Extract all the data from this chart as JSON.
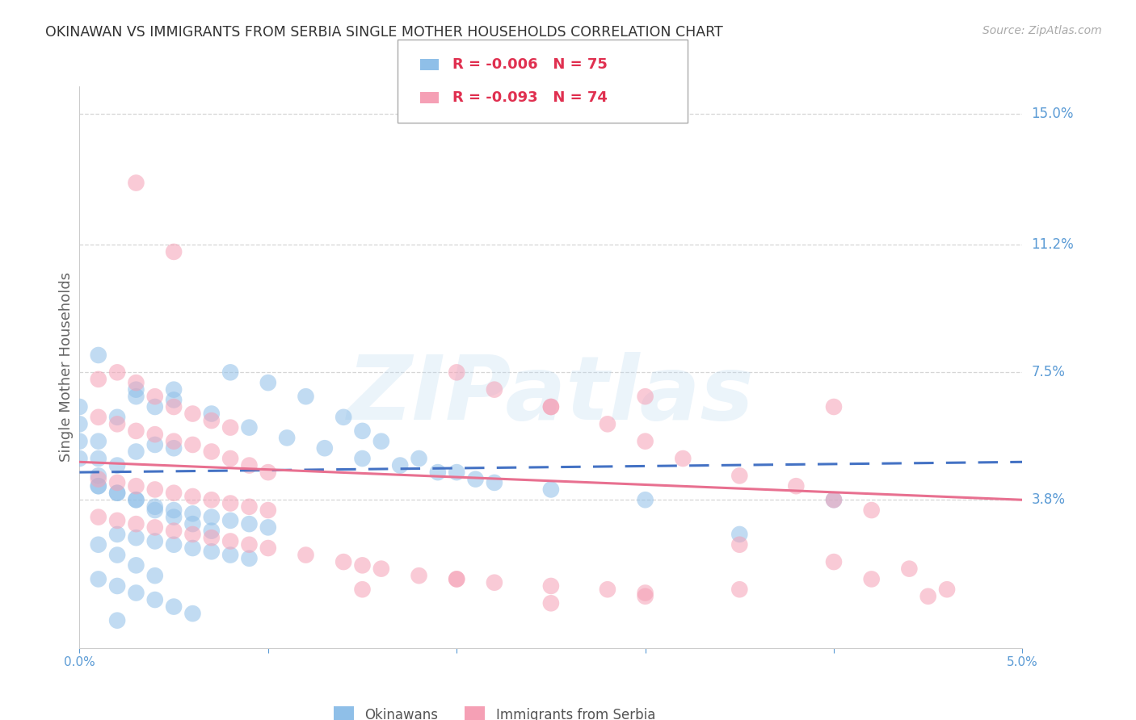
{
  "title": "OKINAWAN VS IMMIGRANTS FROM SERBIA SINGLE MOTHER HOUSEHOLDS CORRELATION CHART",
  "source": "Source: ZipAtlas.com",
  "ylabel": "Single Mother Households",
  "xlim": [
    0.0,
    0.05
  ],
  "ylim": [
    -0.005,
    0.158
  ],
  "ytick_vals": [
    0.038,
    0.075,
    0.112,
    0.15
  ],
  "ytick_labels": [
    "3.8%",
    "7.5%",
    "11.2%",
    "15.0%"
  ],
  "xtick_vals": [
    0.0,
    0.01,
    0.02,
    0.03,
    0.04,
    0.05
  ],
  "xtick_labels": [
    "0.0%",
    "",
    "",
    "",
    "",
    "5.0%"
  ],
  "grid_color": "#cccccc",
  "bg_color": "#ffffff",
  "okinawan_color": "#8fbfe8",
  "serbia_color": "#f5a0b5",
  "okinawan_line_color": "#4472c4",
  "serbia_line_color": "#e87090",
  "okinawan_R": -0.006,
  "okinawan_N": 75,
  "serbia_R": -0.093,
  "serbia_N": 74,
  "legend_label_1": "Okinawans",
  "legend_label_2": "Immigrants from Serbia",
  "watermark": "ZIPatlas",
  "title_color": "#333333",
  "axis_color": "#5b9bd5",
  "blue_line_start": 0.046,
  "blue_line_end": 0.049,
  "pink_line_start": 0.049,
  "pink_line_end": 0.038,
  "okinawan_pts_x": [
    0.001,
    0.002,
    0.003,
    0.004,
    0.005,
    0.001,
    0.002,
    0.003,
    0.004,
    0.005,
    0.001,
    0.002,
    0.003,
    0.004,
    0.005,
    0.006,
    0.007,
    0.008,
    0.009,
    0.01,
    0.002,
    0.003,
    0.004,
    0.005,
    0.006,
    0.007,
    0.008,
    0.009,
    0.0,
    0.0,
    0.0,
    0.0,
    0.001,
    0.001,
    0.002,
    0.003,
    0.004,
    0.005,
    0.006,
    0.007,
    0.001,
    0.002,
    0.003,
    0.004,
    0.001,
    0.002,
    0.003,
    0.004,
    0.005,
    0.006,
    0.008,
    0.01,
    0.012,
    0.014,
    0.015,
    0.016,
    0.018,
    0.02,
    0.022,
    0.025,
    0.003,
    0.005,
    0.007,
    0.009,
    0.011,
    0.013,
    0.015,
    0.017,
    0.019,
    0.021,
    0.03,
    0.035,
    0.04,
    0.001,
    0.002
  ],
  "okinawan_pts_y": [
    0.055,
    0.062,
    0.068,
    0.065,
    0.07,
    0.05,
    0.048,
    0.052,
    0.054,
    0.053,
    0.042,
    0.04,
    0.038,
    0.036,
    0.035,
    0.034,
    0.033,
    0.032,
    0.031,
    0.03,
    0.028,
    0.027,
    0.026,
    0.025,
    0.024,
    0.023,
    0.022,
    0.021,
    0.05,
    0.055,
    0.06,
    0.065,
    0.045,
    0.042,
    0.04,
    0.038,
    0.035,
    0.033,
    0.031,
    0.029,
    0.025,
    0.022,
    0.019,
    0.016,
    0.015,
    0.013,
    0.011,
    0.009,
    0.007,
    0.005,
    0.075,
    0.072,
    0.068,
    0.062,
    0.058,
    0.055,
    0.05,
    0.046,
    0.043,
    0.041,
    0.07,
    0.067,
    0.063,
    0.059,
    0.056,
    0.053,
    0.05,
    0.048,
    0.046,
    0.044,
    0.038,
    0.028,
    0.038,
    0.08,
    0.003
  ],
  "serbia_pts_x": [
    0.001,
    0.002,
    0.003,
    0.004,
    0.005,
    0.006,
    0.007,
    0.008,
    0.003,
    0.005,
    0.001,
    0.002,
    0.003,
    0.004,
    0.005,
    0.006,
    0.007,
    0.008,
    0.009,
    0.01,
    0.001,
    0.002,
    0.003,
    0.004,
    0.005,
    0.006,
    0.007,
    0.008,
    0.009,
    0.01,
    0.001,
    0.002,
    0.003,
    0.004,
    0.005,
    0.006,
    0.007,
    0.008,
    0.009,
    0.01,
    0.012,
    0.014,
    0.015,
    0.016,
    0.018,
    0.02,
    0.022,
    0.025,
    0.028,
    0.03,
    0.02,
    0.022,
    0.025,
    0.028,
    0.03,
    0.032,
    0.035,
    0.038,
    0.04,
    0.042,
    0.025,
    0.03,
    0.035,
    0.04,
    0.042,
    0.044,
    0.045,
    0.046,
    0.015,
    0.02,
    0.025,
    0.03,
    0.035,
    0.04
  ],
  "serbia_pts_y": [
    0.073,
    0.075,
    0.072,
    0.068,
    0.065,
    0.063,
    0.061,
    0.059,
    0.13,
    0.11,
    0.062,
    0.06,
    0.058,
    0.057,
    0.055,
    0.054,
    0.052,
    0.05,
    0.048,
    0.046,
    0.044,
    0.043,
    0.042,
    0.041,
    0.04,
    0.039,
    0.038,
    0.037,
    0.036,
    0.035,
    0.033,
    0.032,
    0.031,
    0.03,
    0.029,
    0.028,
    0.027,
    0.026,
    0.025,
    0.024,
    0.022,
    0.02,
    0.019,
    0.018,
    0.016,
    0.015,
    0.014,
    0.013,
    0.012,
    0.011,
    0.075,
    0.07,
    0.065,
    0.06,
    0.055,
    0.05,
    0.045,
    0.042,
    0.038,
    0.035,
    0.008,
    0.01,
    0.012,
    0.02,
    0.015,
    0.018,
    0.01,
    0.012,
    0.012,
    0.015,
    0.065,
    0.068,
    0.025,
    0.065
  ]
}
